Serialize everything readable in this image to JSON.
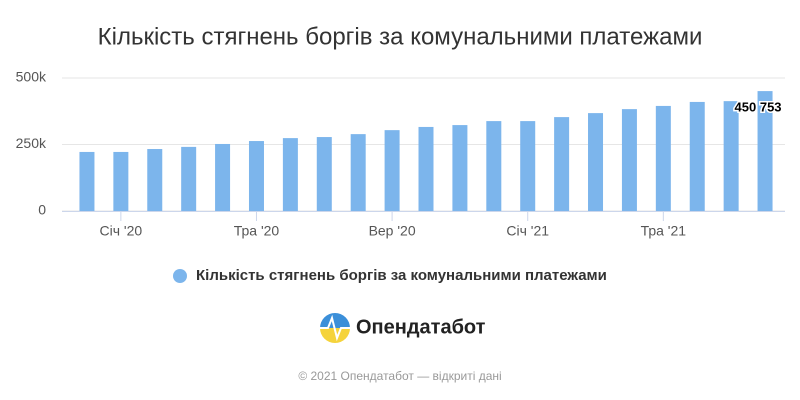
{
  "chart_data": {
    "type": "bar",
    "title": "Кількість стягнень боргів за комунальними платежами",
    "categories": [
      null,
      "Січ '20",
      null,
      null,
      null,
      "Тра '20",
      null,
      null,
      null,
      "Вер '20",
      null,
      null,
      null,
      "Січ '21",
      null,
      null,
      null,
      "Тра '21",
      null,
      null,
      null
    ],
    "series": [
      {
        "name": "Кількість стягнень боргів за комунальними платежами",
        "color": "#7cb5ec",
        "values": [
          222000,
          222000,
          233000,
          241000,
          252000,
          263000,
          274000,
          278000,
          289000,
          304000,
          316000,
          323000,
          338000,
          338000,
          353000,
          368000,
          383000,
          395000,
          410000,
          413000,
          450753
        ],
        "value_labels": [
          null,
          null,
          null,
          null,
          null,
          null,
          null,
          null,
          null,
          null,
          null,
          null,
          null,
          null,
          null,
          null,
          null,
          null,
          null,
          null,
          "450 753"
        ]
      }
    ],
    "ylim": [
      0,
      500000
    ],
    "yticks": [
      0,
      {
        "value": 250000,
        "label": "250k"
      },
      {
        "value": 500000,
        "label": "500k"
      }
    ],
    "grid": true
  },
  "branding": {
    "logo": "Опендатабот",
    "copyright": "© 2021 Опендатабот — відкриті дані"
  }
}
